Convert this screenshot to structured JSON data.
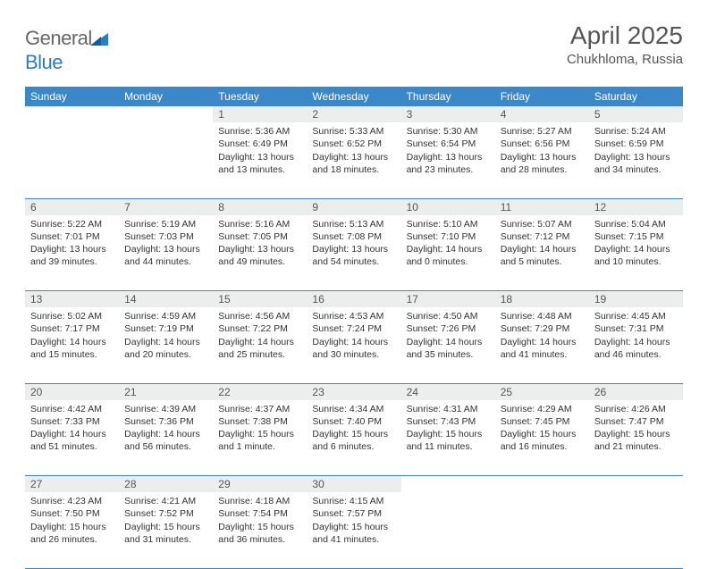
{
  "logo": {
    "general": "General",
    "blue": "Blue"
  },
  "title": "April 2025",
  "location": "Chukhloma, Russia",
  "header_bg": "#3b87c8",
  "header_text": "#ffffff",
  "daynum_bg": "#eceded",
  "text_color": "#333333",
  "columns": [
    "Sunday",
    "Monday",
    "Tuesday",
    "Wednesday",
    "Thursday",
    "Friday",
    "Saturday"
  ],
  "weeks": [
    [
      null,
      null,
      {
        "n": "1",
        "sunrise": "5:36 AM",
        "sunset": "6:49 PM",
        "day": "13 hours and 13 minutes."
      },
      {
        "n": "2",
        "sunrise": "5:33 AM",
        "sunset": "6:52 PM",
        "day": "13 hours and 18 minutes."
      },
      {
        "n": "3",
        "sunrise": "5:30 AM",
        "sunset": "6:54 PM",
        "day": "13 hours and 23 minutes."
      },
      {
        "n": "4",
        "sunrise": "5:27 AM",
        "sunset": "6:56 PM",
        "day": "13 hours and 28 minutes."
      },
      {
        "n": "5",
        "sunrise": "5:24 AM",
        "sunset": "6:59 PM",
        "day": "13 hours and 34 minutes."
      }
    ],
    [
      {
        "n": "6",
        "sunrise": "5:22 AM",
        "sunset": "7:01 PM",
        "day": "13 hours and 39 minutes."
      },
      {
        "n": "7",
        "sunrise": "5:19 AM",
        "sunset": "7:03 PM",
        "day": "13 hours and 44 minutes."
      },
      {
        "n": "8",
        "sunrise": "5:16 AM",
        "sunset": "7:05 PM",
        "day": "13 hours and 49 minutes."
      },
      {
        "n": "9",
        "sunrise": "5:13 AM",
        "sunset": "7:08 PM",
        "day": "13 hours and 54 minutes."
      },
      {
        "n": "10",
        "sunrise": "5:10 AM",
        "sunset": "7:10 PM",
        "day": "14 hours and 0 minutes."
      },
      {
        "n": "11",
        "sunrise": "5:07 AM",
        "sunset": "7:12 PM",
        "day": "14 hours and 5 minutes."
      },
      {
        "n": "12",
        "sunrise": "5:04 AM",
        "sunset": "7:15 PM",
        "day": "14 hours and 10 minutes."
      }
    ],
    [
      {
        "n": "13",
        "sunrise": "5:02 AM",
        "sunset": "7:17 PM",
        "day": "14 hours and 15 minutes."
      },
      {
        "n": "14",
        "sunrise": "4:59 AM",
        "sunset": "7:19 PM",
        "day": "14 hours and 20 minutes."
      },
      {
        "n": "15",
        "sunrise": "4:56 AM",
        "sunset": "7:22 PM",
        "day": "14 hours and 25 minutes."
      },
      {
        "n": "16",
        "sunrise": "4:53 AM",
        "sunset": "7:24 PM",
        "day": "14 hours and 30 minutes."
      },
      {
        "n": "17",
        "sunrise": "4:50 AM",
        "sunset": "7:26 PM",
        "day": "14 hours and 35 minutes."
      },
      {
        "n": "18",
        "sunrise": "4:48 AM",
        "sunset": "7:29 PM",
        "day": "14 hours and 41 minutes."
      },
      {
        "n": "19",
        "sunrise": "4:45 AM",
        "sunset": "7:31 PM",
        "day": "14 hours and 46 minutes."
      }
    ],
    [
      {
        "n": "20",
        "sunrise": "4:42 AM",
        "sunset": "7:33 PM",
        "day": "14 hours and 51 minutes."
      },
      {
        "n": "21",
        "sunrise": "4:39 AM",
        "sunset": "7:36 PM",
        "day": "14 hours and 56 minutes."
      },
      {
        "n": "22",
        "sunrise": "4:37 AM",
        "sunset": "7:38 PM",
        "day": "15 hours and 1 minute."
      },
      {
        "n": "23",
        "sunrise": "4:34 AM",
        "sunset": "7:40 PM",
        "day": "15 hours and 6 minutes."
      },
      {
        "n": "24",
        "sunrise": "4:31 AM",
        "sunset": "7:43 PM",
        "day": "15 hours and 11 minutes."
      },
      {
        "n": "25",
        "sunrise": "4:29 AM",
        "sunset": "7:45 PM",
        "day": "15 hours and 16 minutes."
      },
      {
        "n": "26",
        "sunrise": "4:26 AM",
        "sunset": "7:47 PM",
        "day": "15 hours and 21 minutes."
      }
    ],
    [
      {
        "n": "27",
        "sunrise": "4:23 AM",
        "sunset": "7:50 PM",
        "day": "15 hours and 26 minutes."
      },
      {
        "n": "28",
        "sunrise": "4:21 AM",
        "sunset": "7:52 PM",
        "day": "15 hours and 31 minutes."
      },
      {
        "n": "29",
        "sunrise": "4:18 AM",
        "sunset": "7:54 PM",
        "day": "15 hours and 36 minutes."
      },
      {
        "n": "30",
        "sunrise": "4:15 AM",
        "sunset": "7:57 PM",
        "day": "15 hours and 41 minutes."
      },
      null,
      null,
      null
    ]
  ],
  "labels": {
    "sunrise": "Sunrise:",
    "sunset": "Sunset:",
    "daylight": "Daylight:"
  }
}
